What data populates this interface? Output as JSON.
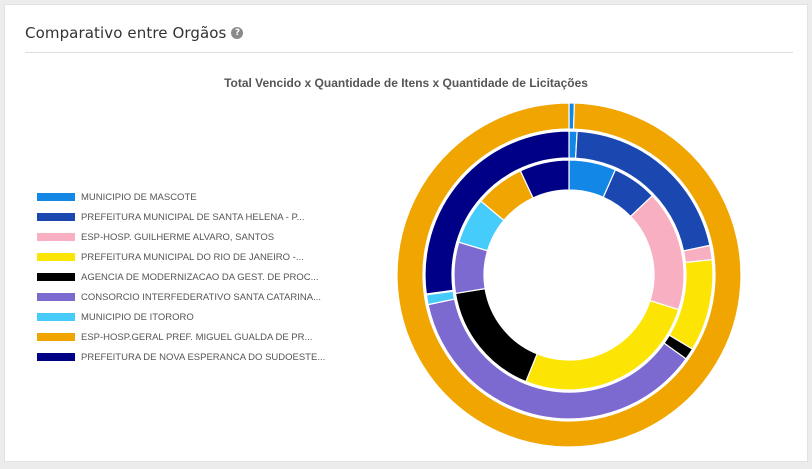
{
  "header": {
    "title": "Comparativo entre Orgãos",
    "help_icon": "question-circle-icon",
    "help_glyph": "?"
  },
  "chart_data": {
    "type": "pie",
    "subtype": "multi-ring donut",
    "title": "Total Vencido x Quantidade de Itens x Quantidade de Licitações",
    "legend_position": "left",
    "categories": [
      "MUNICIPIO DE MASCOTE",
      "PREFEITURA MUNICIPAL DE SANTA HELENA - P...",
      "ESP-HOSP. GUILHERME ALVARO, SANTOS",
      "PREFEITURA MUNICIPAL DO RIO DE JANEIRO -...",
      "AGENCIA DE MODERNIZACAO DA GEST. DE PROC...",
      "CONSORCIO INTERFEDERATIVO SANTA CATARINA...",
      "MUNICIPIO DE ITORORO",
      "ESP-HOSP.GERAL PREF. MIGUEL GUALDA DE PR...",
      "PREFEITURA DE NOVA ESPERANCA DO SUDOESTE..."
    ],
    "colors": [
      "#1387e6",
      "#1b47b1",
      "#f8afc2",
      "#fce504",
      "#000000",
      "#7c6ad1",
      "#45ccfa",
      "#f0a500",
      "#000087"
    ],
    "series": [
      {
        "values": [
          6.0,
          5.7,
          15.4,
          23.8,
          14.8,
          6.5,
          5.9,
          6.3,
          6.3
        ]
      },
      {
        "values": [
          0.9,
          20.8,
          1.6,
          10.3,
          1.3,
          36.8,
          1.1,
          0.1,
          27.1
        ]
      },
      {
        "values": [
          0.5,
          0.0,
          0.0,
          0.0,
          0.0,
          0.0,
          0.0,
          99.5,
          0.0
        ]
      }
    ]
  }
}
